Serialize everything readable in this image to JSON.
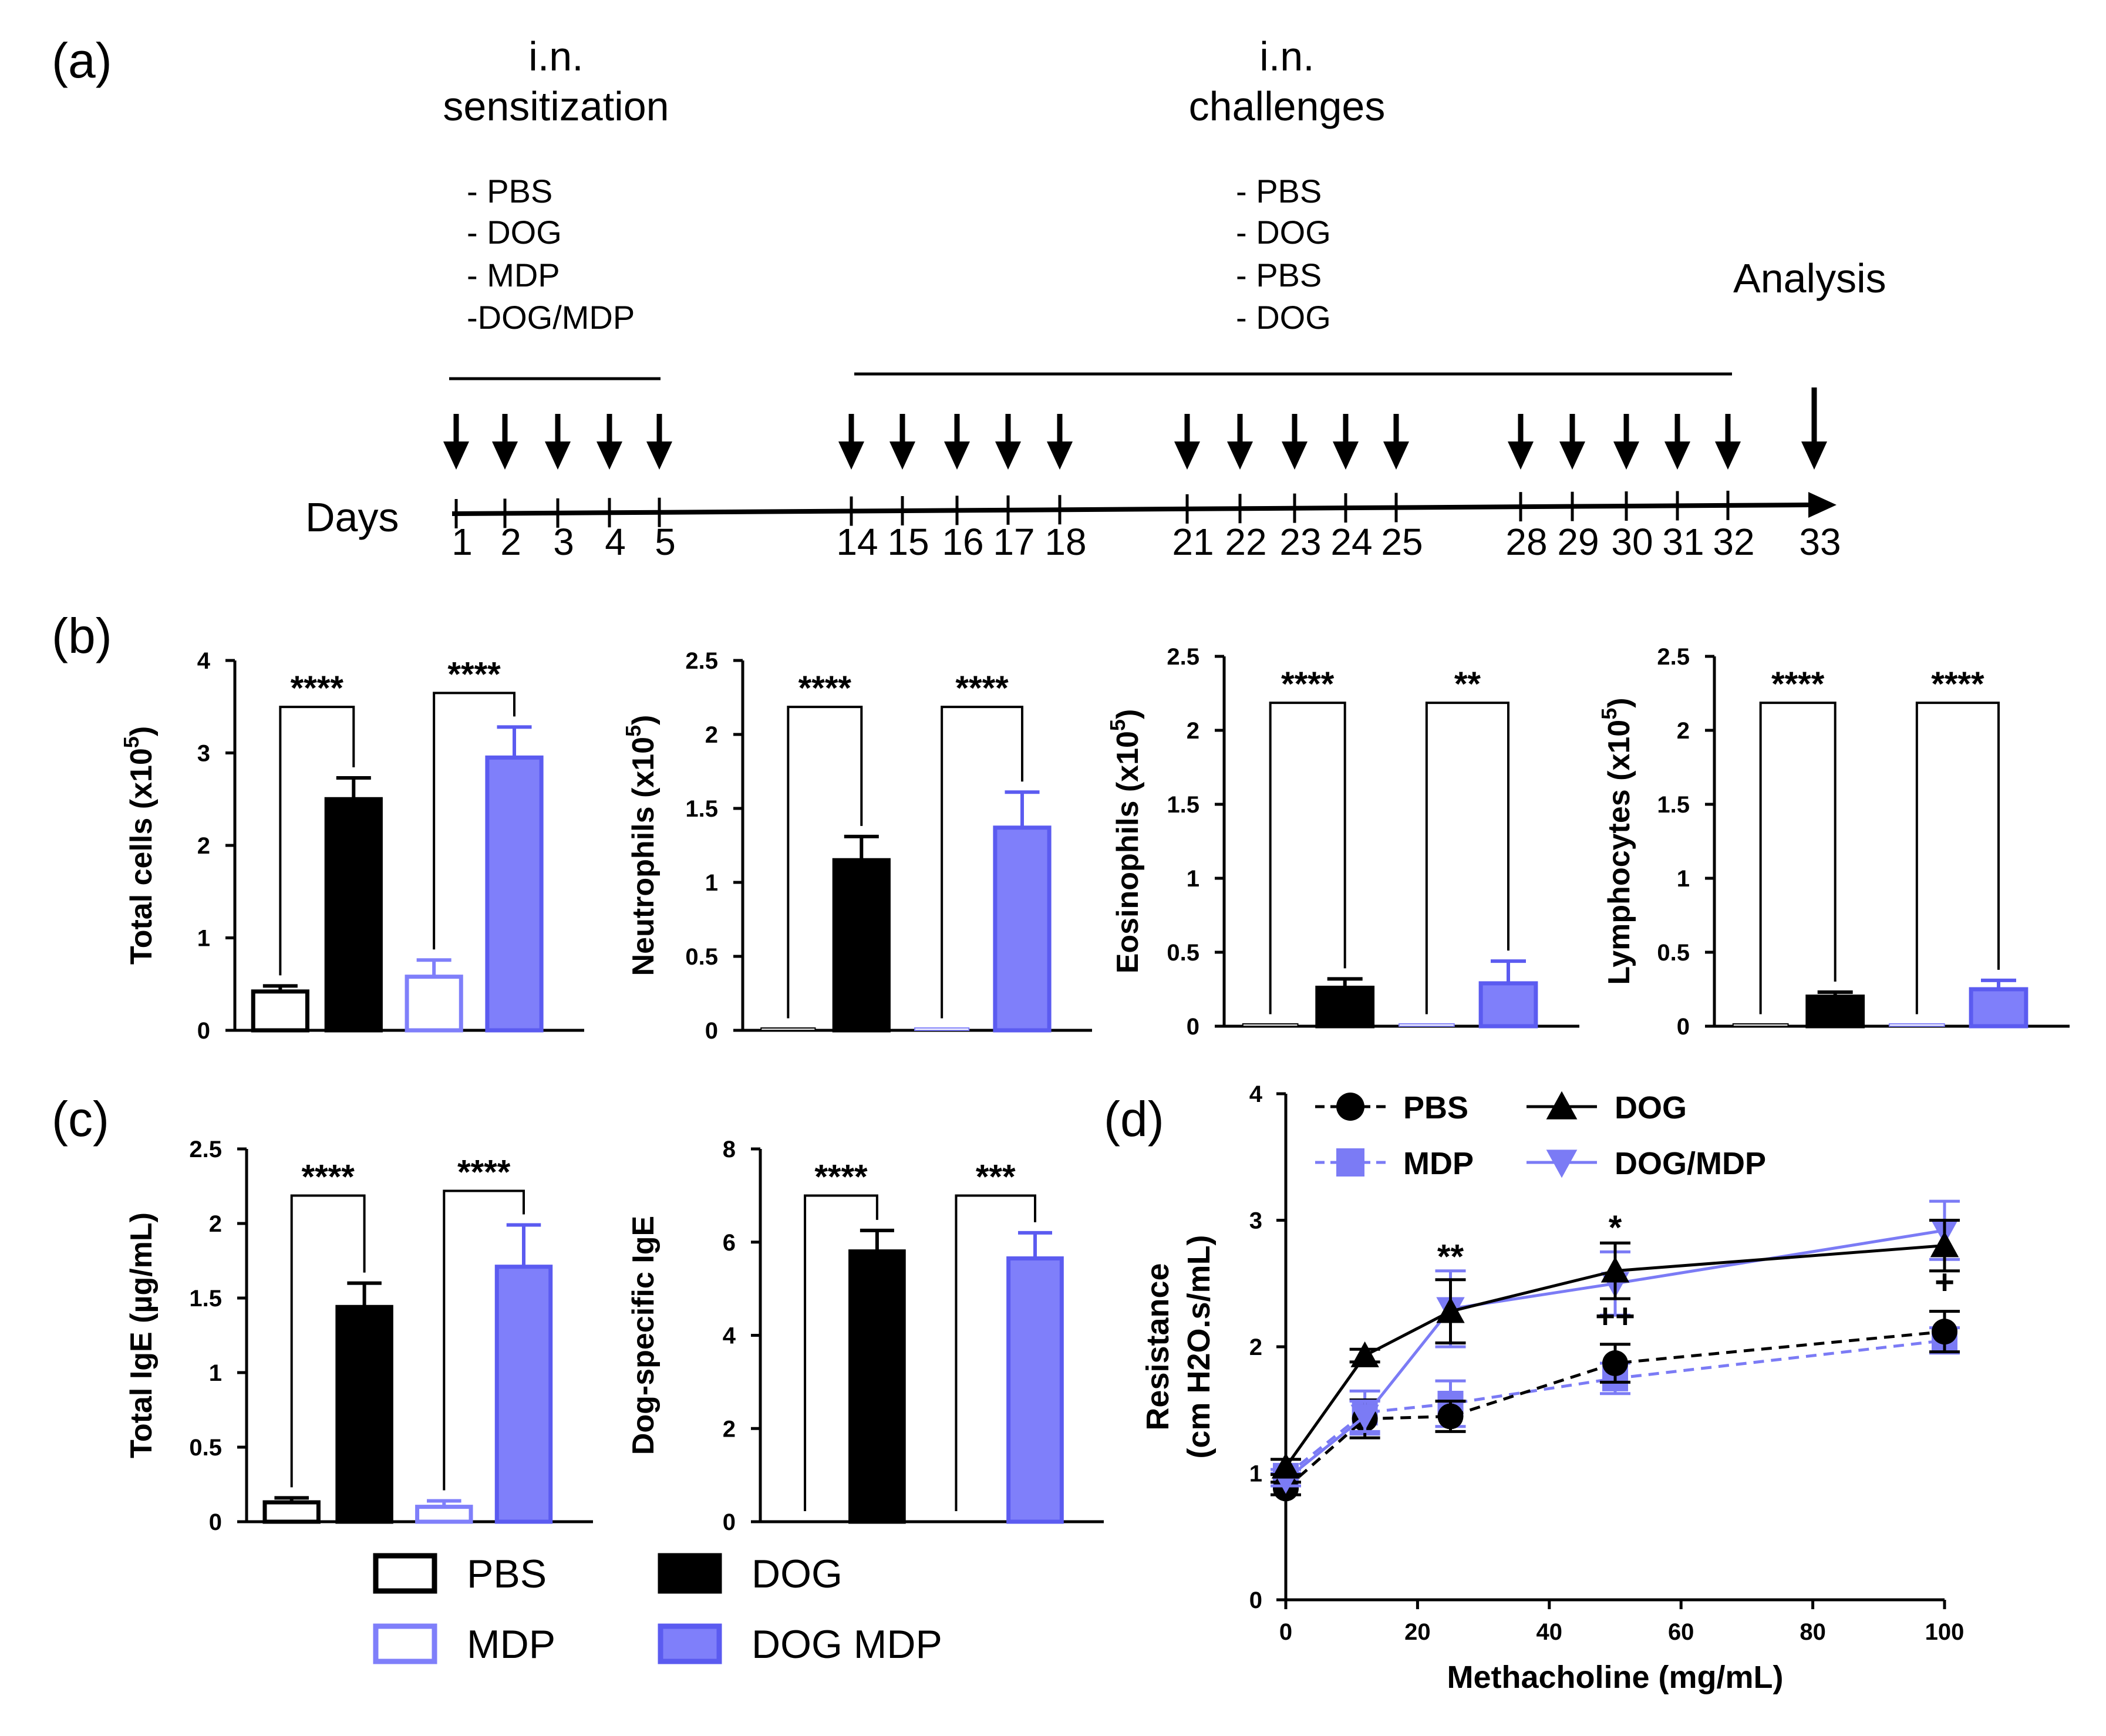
{
  "panel_labels": [
    "(a)",
    "(b)",
    "(c)",
    "(d)"
  ],
  "timeline": {
    "sensitization_title": [
      "i.n.",
      "sensitization"
    ],
    "sensitization_groups": [
      "- PBS",
      "- DOG",
      "- MDP",
      "-DOG/MDP"
    ],
    "challenges_title": [
      "i.n.",
      "challenges"
    ],
    "challenge_groups": [
      "- PBS",
      "- DOG",
      "- PBS",
      "- DOG"
    ],
    "analysis_label": "Analysis",
    "days_label": "Days",
    "days": [
      1,
      2,
      3,
      4,
      5,
      14,
      15,
      16,
      17,
      18,
      21,
      22,
      23,
      24,
      25,
      28,
      29,
      30,
      31,
      32,
      33
    ]
  },
  "legend_bc": [
    {
      "name": "PBS",
      "fill": "#ffffff",
      "stroke": "#000000"
    },
    {
      "name": "DOG",
      "fill": "#000000",
      "stroke": "#000000"
    },
    {
      "name": "MDP",
      "fill": "#ffffff",
      "stroke": "#7f7ffa"
    },
    {
      "name": "DOG MDP",
      "fill": "#7f7ffa",
      "stroke": "#5b5bf0"
    }
  ],
  "chart_data": [
    {
      "id": "b1",
      "type": "bar",
      "ylabel": "Total cells (x10^5)",
      "ylabel_base": "Total cells (x10",
      "ylabel_exp": "5",
      "ylim": [
        0,
        4
      ],
      "yticks": [
        "0",
        "1",
        "2",
        "3",
        "4"
      ],
      "categories": [
        "PBS",
        "DOG",
        "MDP",
        "DOG MDP"
      ],
      "values": [
        0.42,
        2.5,
        0.58,
        2.95
      ],
      "errors": [
        0.06,
        0.23,
        0.18,
        0.33
      ],
      "significance": [
        "****",
        "****"
      ]
    },
    {
      "id": "b2",
      "type": "bar",
      "ylabel": "Neutrophils (x10^5)",
      "ylabel_base": "Neutrophils (x10",
      "ylabel_exp": "5",
      "ylim": [
        0,
        2.5
      ],
      "yticks": [
        "0",
        "0.5",
        "1",
        "1.5",
        "2",
        "2.5"
      ],
      "categories": [
        "PBS",
        "DOG",
        "MDP",
        "DOG MDP"
      ],
      "values": [
        0.01,
        1.15,
        0.01,
        1.37
      ],
      "errors": [
        0,
        0.16,
        0,
        0.24
      ],
      "significance": [
        "****",
        "****"
      ]
    },
    {
      "id": "b3",
      "type": "bar",
      "ylabel": "Eosinophils (x10^5)",
      "ylabel_base": "Eosinophils (x10",
      "ylabel_exp": "5",
      "ylim": [
        0,
        2.5
      ],
      "yticks": [
        "0",
        "0.5",
        "1",
        "1.5",
        "2",
        "2.5"
      ],
      "categories": [
        "PBS",
        "DOG",
        "MDP",
        "DOG MDP"
      ],
      "values": [
        0.01,
        0.26,
        0.01,
        0.29
      ],
      "errors": [
        0,
        0.06,
        0,
        0.15
      ],
      "significance": [
        "****",
        "**"
      ]
    },
    {
      "id": "b4",
      "type": "bar",
      "ylabel": "Lymphocytes (x10^5)",
      "ylabel_base": "Lymphocytes (x10",
      "ylabel_exp": "5",
      "ylim": [
        0,
        2.5
      ],
      "yticks": [
        "0",
        "0.5",
        "1",
        "1.5",
        "2",
        "2.5"
      ],
      "categories": [
        "PBS",
        "DOG",
        "MDP",
        "DOG MDP"
      ],
      "values": [
        0.01,
        0.2,
        0.01,
        0.25
      ],
      "errors": [
        0,
        0.03,
        0,
        0.06
      ],
      "significance": [
        "****",
        "****"
      ]
    },
    {
      "id": "c1",
      "type": "bar",
      "ylabel": "Total IgE (µg/mL)",
      "ylim": [
        0,
        2.5
      ],
      "yticks": [
        "0",
        "0.5",
        "1",
        "1.5",
        "2",
        "2.5"
      ],
      "categories": [
        "PBS",
        "DOG",
        "MDP",
        "DOG MDP"
      ],
      "values": [
        0.13,
        1.44,
        0.1,
        1.71
      ],
      "errors": [
        0.03,
        0.16,
        0.04,
        0.28
      ],
      "significance": [
        "****",
        "****"
      ]
    },
    {
      "id": "c2",
      "type": "bar",
      "ylabel": "Dog-specific IgE",
      "ylim": [
        0,
        8
      ],
      "yticks": [
        "0",
        "2",
        "4",
        "6",
        "8"
      ],
      "categories": [
        "PBS",
        "DOG",
        "MDP",
        "DOG MDP"
      ],
      "values": [
        0,
        5.8,
        0,
        5.65
      ],
      "errors": [
        0,
        0.45,
        0,
        0.55
      ],
      "significance": [
        "****",
        "***"
      ]
    },
    {
      "id": "d",
      "type": "line",
      "xlabel": "Methacholine (mg/mL)",
      "ylabel": [
        "Resistance",
        "(cm H2O.s/mL)"
      ],
      "xlim": [
        0,
        100
      ],
      "ylim": [
        0,
        4
      ],
      "xticks": [
        "0",
        "20",
        "40",
        "60",
        "80",
        "100"
      ],
      "yticks": [
        "0",
        "1",
        "2",
        "3",
        "4"
      ],
      "x": [
        0,
        12,
        25,
        50,
        100
      ],
      "series": [
        {
          "name": "PBS",
          "values": [
            0.88,
            1.43,
            1.45,
            1.87,
            2.12
          ],
          "errors": [
            0.05,
            0.15,
            0.12,
            0.15,
            0.16
          ],
          "marker": "circle",
          "dashed": true,
          "color": "#000000"
        },
        {
          "name": "DOG",
          "values": [
            1.05,
            1.93,
            2.28,
            2.6,
            2.8
          ],
          "errors": [
            0.06,
            0.05,
            0.25,
            0.22,
            0.2
          ],
          "marker": "triangle-up",
          "dashed": false,
          "color": "#000000"
        },
        {
          "name": "MDP",
          "values": [
            0.98,
            1.48,
            1.55,
            1.75,
            2.05
          ],
          "errors": [
            0.05,
            0.17,
            0.18,
            0.12,
            0.1
          ],
          "marker": "square",
          "dashed": true,
          "color": "#7b7bf5"
        },
        {
          "name": "DOG/MDP",
          "values": [
            0.95,
            1.45,
            2.3,
            2.5,
            2.92
          ],
          "errors": [
            0.05,
            0.12,
            0.3,
            0.25,
            0.23
          ],
          "marker": "triangle-down",
          "dashed": false,
          "color": "#7b7bf5"
        }
      ],
      "annotations": [
        {
          "text": "**",
          "x": 25,
          "y": 2.62
        },
        {
          "text": "*",
          "x": 50,
          "y": 2.85
        },
        {
          "text": "++",
          "x": 50,
          "y": 2.15
        },
        {
          "text": "+",
          "x": 100,
          "y": 2.42
        }
      ]
    }
  ]
}
